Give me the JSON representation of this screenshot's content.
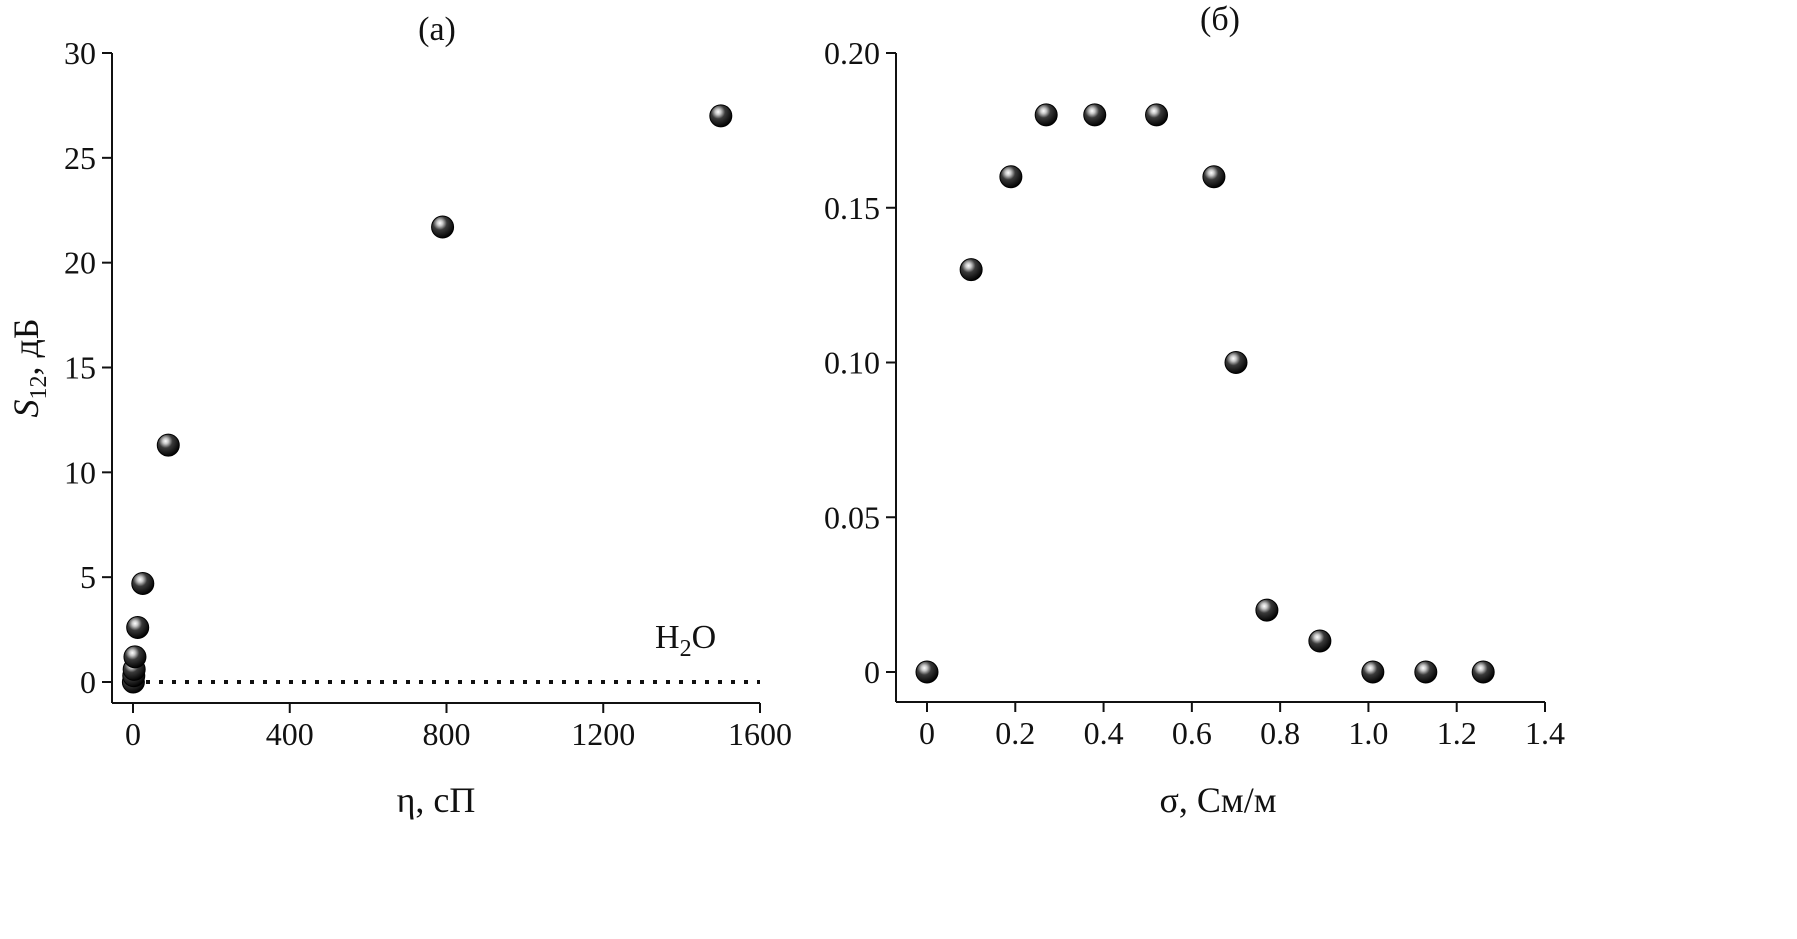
{
  "chart_data": [
    {
      "type": "scatter",
      "panel_label": "(a)",
      "xlabel": "η, сП",
      "ylabel_main": "S",
      "ylabel_sub": "12",
      "ylabel_rest": ", дБ",
      "xlim": [
        -20,
        1600
      ],
      "ylim": [
        -1,
        30
      ],
      "xticks": [
        0,
        400,
        800,
        1200,
        1600
      ],
      "yticks": [
        0,
        5,
        10,
        15,
        20,
        25,
        30
      ],
      "reference_line": {
        "y": 0,
        "style": "dotted"
      },
      "annotation": {
        "main": "H",
        "sub": "2",
        "rest": "O",
        "x": 1400,
        "y": 2
      },
      "grid": false,
      "series": [
        {
          "points": [
            {
              "x": 1,
              "y": 0
            },
            {
              "x": 2,
              "y": 0.3
            },
            {
              "x": 3,
              "y": 0.6
            },
            {
              "x": 5,
              "y": 1.2
            },
            {
              "x": 12,
              "y": 2.6
            },
            {
              "x": 25,
              "y": 4.7
            },
            {
              "x": 90,
              "y": 11.3
            },
            {
              "x": 790,
              "y": 21.7
            },
            {
              "x": 1500,
              "y": 27
            }
          ]
        }
      ]
    },
    {
      "type": "scatter",
      "panel_label": "(б)",
      "xlabel": "σ, См/м",
      "xlim": [
        -0.07,
        1.4
      ],
      "ylim": [
        -0.01,
        0.2
      ],
      "xticks": [
        0,
        0.2,
        0.4,
        0.6,
        0.8,
        1.0,
        1.2,
        1.4
      ],
      "xtick_labels": [
        "0",
        "0.2",
        "0.4",
        "0.6",
        "0.8",
        "1.0",
        "1.2",
        "1.4"
      ],
      "yticks": [
        0,
        0.05,
        0.1,
        0.15,
        0.2
      ],
      "ytick_labels": [
        "0",
        "0.05",
        "0.10",
        "0.15",
        "0.20"
      ],
      "grid": false,
      "series": [
        {
          "points": [
            {
              "x": 0,
              "y": 0
            },
            {
              "x": 0.1,
              "y": 0.13
            },
            {
              "x": 0.19,
              "y": 0.16
            },
            {
              "x": 0.27,
              "y": 0.18
            },
            {
              "x": 0.38,
              "y": 0.18
            },
            {
              "x": 0.52,
              "y": 0.18
            },
            {
              "x": 0.65,
              "y": 0.16
            },
            {
              "x": 0.7,
              "y": 0.1
            },
            {
              "x": 0.77,
              "y": 0.02
            },
            {
              "x": 0.89,
              "y": 0.01
            },
            {
              "x": 1.01,
              "y": 0
            },
            {
              "x": 1.13,
              "y": 0
            },
            {
              "x": 1.26,
              "y": 0
            }
          ]
        }
      ]
    }
  ]
}
